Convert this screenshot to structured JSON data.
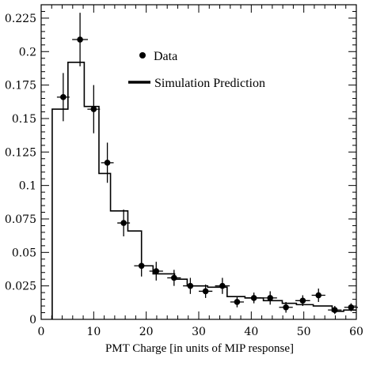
{
  "chart_data": {
    "type": "scatter",
    "title": "",
    "xlabel": "PMT Charge [in units of MIP response]",
    "ylabel": "",
    "xlim": [
      0,
      60
    ],
    "ylim": [
      0,
      0.235
    ],
    "x_ticks": [
      0,
      10,
      20,
      30,
      40,
      50,
      60
    ],
    "x_tick_labels": [
      "0",
      "10",
      "20",
      "30",
      "40",
      "50",
      "60"
    ],
    "y_ticks": [
      0,
      0.025,
      0.05,
      0.075,
      0.1,
      0.125,
      0.15,
      0.175,
      0.2,
      0.225
    ],
    "y_tick_labels": [
      "0",
      "0.025",
      "0.05",
      "0.075",
      "0.1",
      "0.125",
      "0.15",
      "0.175",
      "0.2",
      "0.225"
    ],
    "grid": false,
    "legend_position": "top-center",
    "series": [
      {
        "name": "Data",
        "kind": "points_with_errors",
        "color": "#000000",
        "points": [
          {
            "x": 4.2,
            "y": 0.166,
            "xerr": 1.2,
            "yerr": 0.018
          },
          {
            "x": 7.4,
            "y": 0.209,
            "xerr": 1.5,
            "yerr": 0.02
          },
          {
            "x": 10.0,
            "y": 0.157,
            "xerr": 1.2,
            "yerr": 0.018
          },
          {
            "x": 12.6,
            "y": 0.117,
            "xerr": 1.2,
            "yerr": 0.015
          },
          {
            "x": 15.7,
            "y": 0.072,
            "xerr": 1.2,
            "yerr": 0.01
          },
          {
            "x": 19.1,
            "y": 0.04,
            "xerr": 1.4,
            "yerr": 0.008
          },
          {
            "x": 21.9,
            "y": 0.036,
            "xerr": 1.3,
            "yerr": 0.007
          },
          {
            "x": 25.3,
            "y": 0.031,
            "xerr": 1.3,
            "yerr": 0.006
          },
          {
            "x": 28.4,
            "y": 0.025,
            "xerr": 1.4,
            "yerr": 0.006
          },
          {
            "x": 31.3,
            "y": 0.021,
            "xerr": 1.3,
            "yerr": 0.005
          },
          {
            "x": 34.5,
            "y": 0.025,
            "xerr": 1.4,
            "yerr": 0.006
          },
          {
            "x": 37.3,
            "y": 0.013,
            "xerr": 1.3,
            "yerr": 0.004
          },
          {
            "x": 40.5,
            "y": 0.016,
            "xerr": 1.4,
            "yerr": 0.004
          },
          {
            "x": 43.6,
            "y": 0.016,
            "xerr": 1.3,
            "yerr": 0.005
          },
          {
            "x": 46.6,
            "y": 0.009,
            "xerr": 1.3,
            "yerr": 0.004
          },
          {
            "x": 49.8,
            "y": 0.014,
            "xerr": 1.4,
            "yerr": 0.004
          },
          {
            "x": 52.8,
            "y": 0.018,
            "xerr": 1.3,
            "yerr": 0.005
          },
          {
            "x": 55.9,
            "y": 0.007,
            "xerr": 1.3,
            "yerr": 0.003
          },
          {
            "x": 59.0,
            "y": 0.009,
            "xerr": 1.3,
            "yerr": 0.003
          }
        ]
      },
      {
        "name": "Simulation Prediction",
        "kind": "step_histogram",
        "color": "#000000",
        "bin_edges": [
          2.1,
          5.1,
          8.2,
          11.0,
          13.2,
          16.5,
          19.1,
          21.3,
          25.4,
          27.8,
          31.7,
          35.4,
          38.8,
          42.3,
          45.9,
          48.6,
          51.8,
          55.4,
          57.6,
          60.0
        ],
        "values": [
          0.157,
          0.192,
          0.159,
          0.109,
          0.081,
          0.066,
          0.04,
          0.034,
          0.03,
          0.025,
          0.024,
          0.017,
          0.016,
          0.014,
          0.012,
          0.011,
          0.01,
          0.006,
          0.007
        ]
      }
    ]
  }
}
